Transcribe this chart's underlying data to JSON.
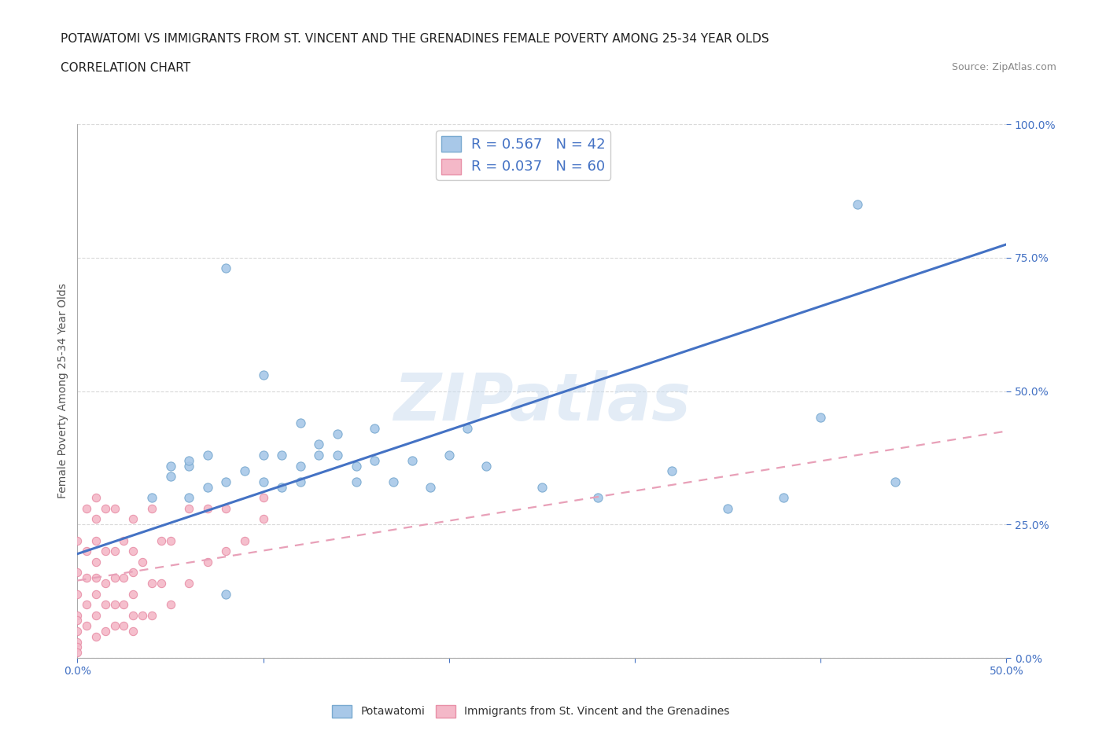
{
  "title_line1": "POTAWATOMI VS IMMIGRANTS FROM ST. VINCENT AND THE GRENADINES FEMALE POVERTY AMONG 25-34 YEAR OLDS",
  "title_line2": "CORRELATION CHART",
  "source_text": "Source: ZipAtlas.com",
  "ylabel": "Female Poverty Among 25-34 Year Olds",
  "xlim": [
    0.0,
    0.5
  ],
  "ylim": [
    0.0,
    1.0
  ],
  "xtick_vals": [
    0.0,
    0.1,
    0.2,
    0.3,
    0.4,
    0.5
  ],
  "xtick_labels": [
    "0.0%",
    "",
    "",
    "",
    "",
    "50.0%"
  ],
  "ytick_vals": [
    0.0,
    0.25,
    0.5,
    0.75,
    1.0
  ],
  "ytick_labels": [
    "0.0%",
    "25.0%",
    "50.0%",
    "75.0%",
    "100.0%"
  ],
  "R_blue": 0.567,
  "N_blue": 42,
  "R_pink": 0.037,
  "N_pink": 60,
  "blue_dot_color": "#a8c8e8",
  "blue_edge_color": "#7aaad0",
  "pink_dot_color": "#f4b8c8",
  "pink_edge_color": "#e890a8",
  "blue_line_color": "#4472c4",
  "pink_line_color": "#e8a0b8",
  "watermark": "ZIPatlas",
  "blue_scatter_x": [
    0.04,
    0.05,
    0.05,
    0.06,
    0.06,
    0.07,
    0.07,
    0.08,
    0.08,
    0.09,
    0.1,
    0.1,
    0.11,
    0.11,
    0.12,
    0.12,
    0.13,
    0.13,
    0.14,
    0.14,
    0.15,
    0.15,
    0.16,
    0.16,
    0.17,
    0.18,
    0.19,
    0.2,
    0.21,
    0.22,
    0.1,
    0.12,
    0.25,
    0.28,
    0.32,
    0.35,
    0.38,
    0.4,
    0.42,
    0.44,
    0.06,
    0.08
  ],
  "blue_scatter_y": [
    0.3,
    0.34,
    0.36,
    0.3,
    0.36,
    0.32,
    0.38,
    0.33,
    0.73,
    0.35,
    0.33,
    0.38,
    0.32,
    0.38,
    0.33,
    0.36,
    0.38,
    0.4,
    0.38,
    0.42,
    0.33,
    0.36,
    0.37,
    0.43,
    0.33,
    0.37,
    0.32,
    0.38,
    0.43,
    0.36,
    0.53,
    0.44,
    0.32,
    0.3,
    0.35,
    0.28,
    0.3,
    0.45,
    0.85,
    0.33,
    0.37,
    0.12
  ],
  "pink_scatter_x": [
    0.0,
    0.0,
    0.0,
    0.0,
    0.005,
    0.005,
    0.005,
    0.005,
    0.005,
    0.01,
    0.01,
    0.01,
    0.01,
    0.01,
    0.01,
    0.01,
    0.01,
    0.015,
    0.015,
    0.015,
    0.015,
    0.015,
    0.02,
    0.02,
    0.02,
    0.02,
    0.02,
    0.025,
    0.025,
    0.025,
    0.025,
    0.03,
    0.03,
    0.03,
    0.03,
    0.03,
    0.03,
    0.035,
    0.035,
    0.04,
    0.04,
    0.04,
    0.045,
    0.045,
    0.05,
    0.05,
    0.06,
    0.06,
    0.07,
    0.07,
    0.08,
    0.08,
    0.09,
    0.1,
    0.1,
    0.0,
    0.0,
    0.0,
    0.0,
    0.0
  ],
  "pink_scatter_y": [
    0.08,
    0.12,
    0.16,
    0.22,
    0.06,
    0.1,
    0.15,
    0.2,
    0.28,
    0.04,
    0.08,
    0.12,
    0.15,
    0.18,
    0.22,
    0.26,
    0.3,
    0.05,
    0.1,
    0.14,
    0.2,
    0.28,
    0.06,
    0.1,
    0.15,
    0.2,
    0.28,
    0.06,
    0.1,
    0.15,
    0.22,
    0.05,
    0.08,
    0.12,
    0.16,
    0.2,
    0.26,
    0.08,
    0.18,
    0.08,
    0.14,
    0.28,
    0.14,
    0.22,
    0.1,
    0.22,
    0.14,
    0.28,
    0.18,
    0.28,
    0.2,
    0.28,
    0.22,
    0.26,
    0.3,
    0.03,
    0.05,
    0.07,
    0.02,
    0.01
  ],
  "grid_color": "#d0d0d0",
  "background_color": "#ffffff",
  "title_fontsize": 11,
  "label_fontsize": 10,
  "tick_fontsize": 10,
  "legend_R_N_color": "#4472c4"
}
